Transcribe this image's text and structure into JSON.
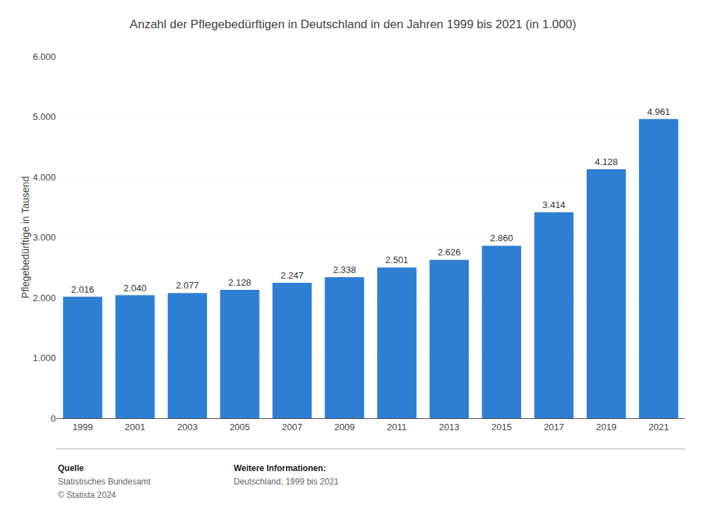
{
  "chart_data": {
    "type": "bar",
    "title": "Anzahl der Pflegebedürftigen in Deutschland in den Jahren 1999 bis 2021 (in 1.000)",
    "ylabel": "Pflegebedürftige in Tausend",
    "categories": [
      "1999",
      "2001",
      "2003",
      "2005",
      "2007",
      "2009",
      "2011",
      "2013",
      "2015",
      "2017",
      "2019",
      "2021"
    ],
    "values": [
      2016,
      2040,
      2077,
      2128,
      2247,
      2338,
      2501,
      2626,
      2860,
      3414,
      4128,
      4961
    ],
    "value_labels": [
      "2.016",
      "2.040",
      "2.077",
      "2.128",
      "2.247",
      "2.338",
      "2.501",
      "2.626",
      "2.860",
      "3.414",
      "4.128",
      "4.961"
    ],
    "data_labels": true,
    "color": "#2e7fd4",
    "ylim": [
      0,
      6000
    ],
    "yticks": [
      0,
      {
        "value": 1000,
        "label": "1.000"
      },
      {
        "value": 2000,
        "label": "2.000"
      },
      {
        "value": 3000,
        "label": "3.000"
      },
      {
        "value": 4000,
        "label": "4.000"
      },
      {
        "value": 5000,
        "label": "5.000"
      },
      {
        "value": 6000,
        "label": "6.000"
      }
    ],
    "grid": true,
    "annotations": [
      [
        "Quelle",
        "Statistisches Bundesamt",
        "© Statista 2024"
      ],
      [
        "Weitere Informationen:",
        "Deutschland; 1999 bis 2021"
      ]
    ]
  }
}
